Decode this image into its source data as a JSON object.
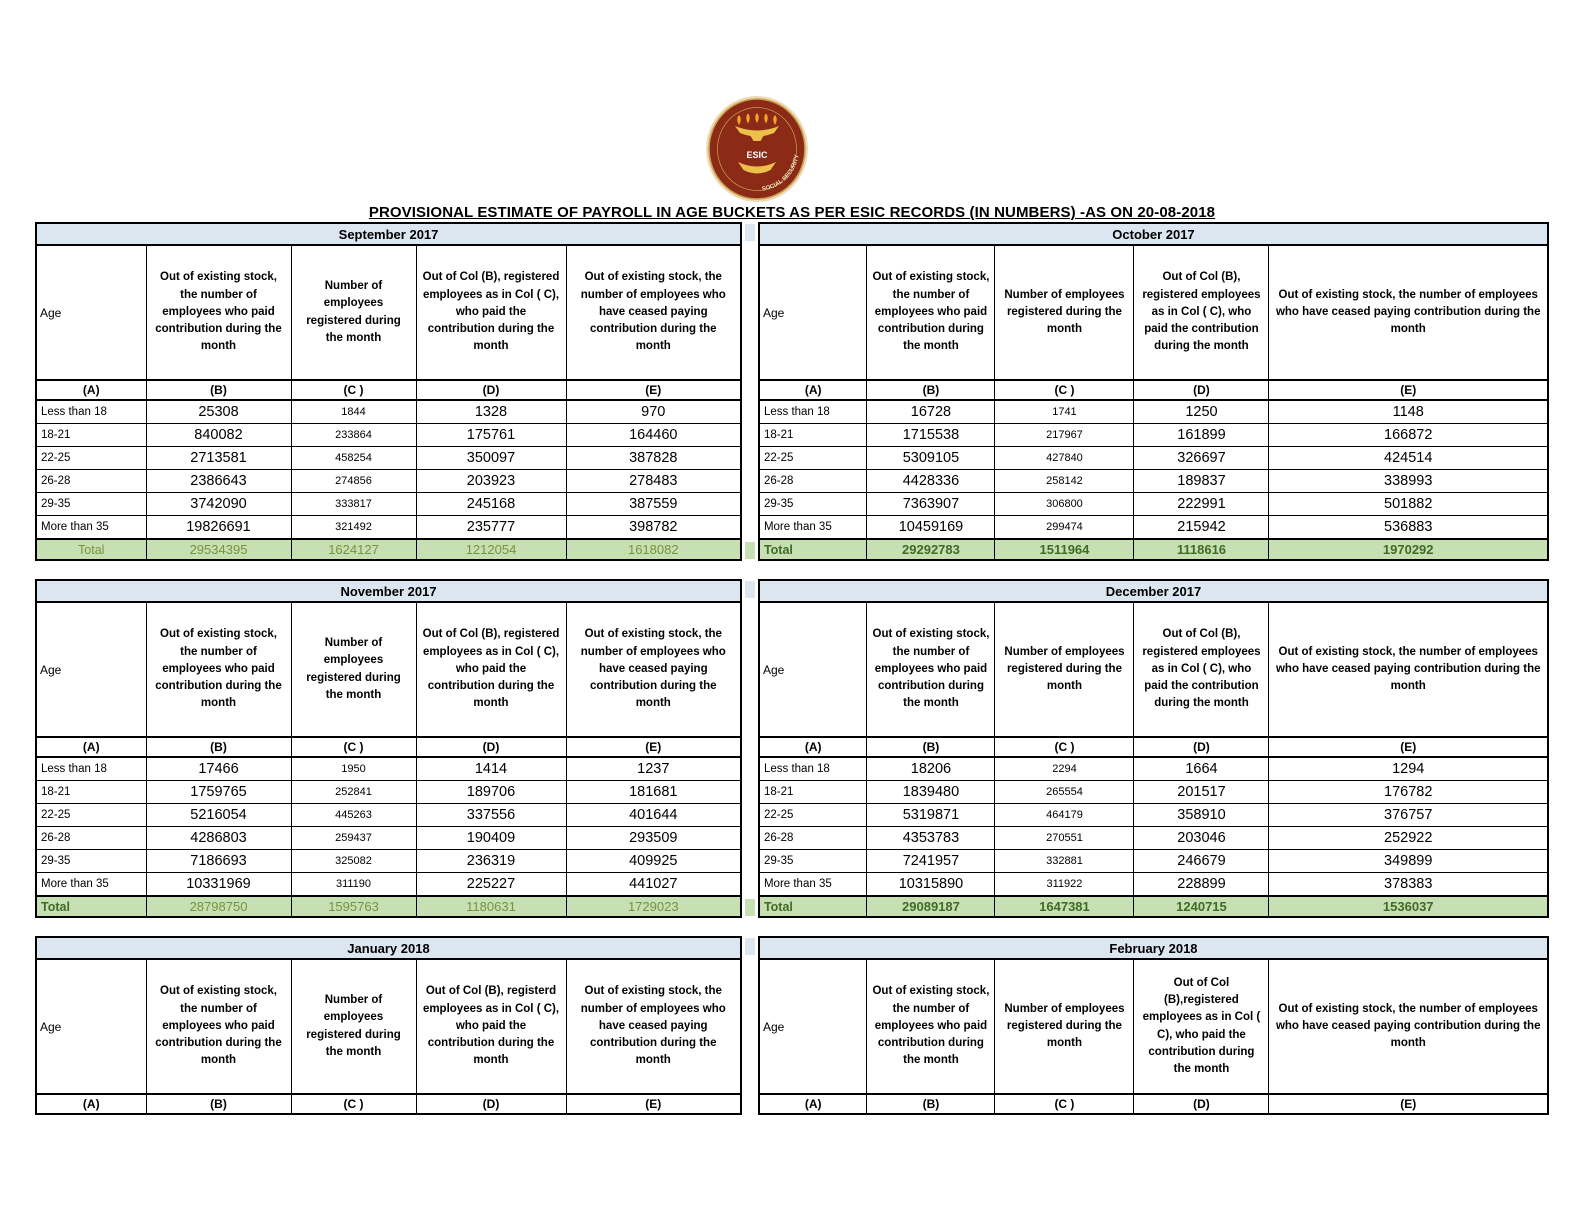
{
  "page_title": "PROVISIONAL ESTIMATE OF PAYROLL IN AGE BUCKETS AS PER ESIC RECORDS (IN NUMBERS) -AS ON 20-08-2018",
  "logo": {
    "acronym": "ESIC",
    "motto": "SOCIAL SECURITY",
    "colors": {
      "maroon": "#8b2a17",
      "gold": "#e2b14c",
      "cream": "#eddcba"
    }
  },
  "colors": {
    "title_bar_blue": "#dce6f1",
    "total_row_green": "#c6e0b4",
    "total_text_plain": "#76933c",
    "total_text_bold": "#3f6b24"
  },
  "letters": [
    "(A)",
    "(B)",
    "(C )",
    "(D)",
    "(E)"
  ],
  "months": [
    {
      "title": "September 2017",
      "headers": {
        "a": "Age",
        "b": "Out of existing stock, the number of employees who paid contribution during the month",
        "c": "Number of employees registered during the month",
        "d": "Out of Col (B), registered employees as in Col ( C), who paid the contribution during the month",
        "e": "Out of existing stock, the number of  employees  who have ceased paying contribution during the month"
      },
      "rows": [
        {
          "age": "Less than 18",
          "b": "25308",
          "c": "1844",
          "d": "1328",
          "e": "970"
        },
        {
          "age": "18-21",
          "b": "840082",
          "c": "233864",
          "d": "175761",
          "e": "164460"
        },
        {
          "age": "22-25",
          "b": "2713581",
          "c": "458254",
          "d": "350097",
          "e": "387828"
        },
        {
          "age": "26-28",
          "b": "2386643",
          "c": "274856",
          "d": "203923",
          "e": "278483"
        },
        {
          "age": "29-35",
          "b": "3742090",
          "c": "333817",
          "d": "245168",
          "e": "387559"
        },
        {
          "age": "More than 35",
          "b": "19826691",
          "c": "321492",
          "d": "235777",
          "e": "398782"
        }
      ],
      "total": {
        "label": "Total",
        "b": "29534395",
        "c": "1624127",
        "d": "1212054",
        "e": "1618082"
      },
      "total_style": {
        "label_align": "center",
        "label_bold": false,
        "values_bold": false
      }
    },
    {
      "title": "October 2017",
      "headers": {
        "a": "Age",
        "b": "Out of existing stock, the number of employees who paid contribution during the month",
        "c": "Number of employees registered during the month",
        "d": "Out of Col (B), registered employees as in Col ( C), who paid the contribution during the month",
        "e": "Out of existing stock, the number of  employees  who have ceased paying contribution during the month"
      },
      "rows": [
        {
          "age": "Less than 18",
          "b": "16728",
          "c": "1741",
          "d": "1250",
          "e": "1148"
        },
        {
          "age": "18-21",
          "b": "1715538",
          "c": "217967",
          "d": "161899",
          "e": "166872"
        },
        {
          "age": "22-25",
          "b": "5309105",
          "c": "427840",
          "d": "326697",
          "e": "424514"
        },
        {
          "age": "26-28",
          "b": "4428336",
          "c": "258142",
          "d": "189837",
          "e": "338993"
        },
        {
          "age": "29-35",
          "b": "7363907",
          "c": "306800",
          "d": "222991",
          "e": "501882"
        },
        {
          "age": "More than 35",
          "b": "10459169",
          "c": "299474",
          "d": "215942",
          "e": "536883"
        }
      ],
      "total": {
        "label": "Total",
        "b": "29292783",
        "c": "1511964",
        "d": "1118616",
        "e": "1970292"
      },
      "total_style": {
        "label_align": "left",
        "label_bold": true,
        "values_bold": true
      }
    },
    {
      "title": "November 2017",
      "headers": {
        "a": "Age",
        "b": "Out of existing stock, the number of employees who paid contribution during the month",
        "c": "Number of employees registered during the month",
        "d": "Out of Col (B), registered employees as in Col ( C), who paid the contribution during the month",
        "e": "Out of existing stock, the number of  employees  who have ceased paying contribution during the month"
      },
      "rows": [
        {
          "age": "Less than 18",
          "b": "17466",
          "c": "1950",
          "d": "1414",
          "e": "1237"
        },
        {
          "age": "18-21",
          "b": "1759765",
          "c": "252841",
          "d": "189706",
          "e": "181681"
        },
        {
          "age": "22-25",
          "b": "5216054",
          "c": "445263",
          "d": "337556",
          "e": "401644"
        },
        {
          "age": "26-28",
          "b": "4286803",
          "c": "259437",
          "d": "190409",
          "e": "293509"
        },
        {
          "age": "29-35",
          "b": "7186693",
          "c": "325082",
          "d": "236319",
          "e": "409925"
        },
        {
          "age": "More than 35",
          "b": "10331969",
          "c": "311190",
          "d": "225227",
          "e": "441027"
        }
      ],
      "total": {
        "label": "Total",
        "b": "28798750",
        "c": "1595763",
        "d": "1180631",
        "e": "1729023"
      },
      "total_style": {
        "label_align": "left",
        "label_bold": true,
        "values_bold": false
      }
    },
    {
      "title": "December 2017",
      "headers": {
        "a": "Age",
        "b": "Out of existing stock, the number of employees who paid contribution during the month",
        "c": "Number of employees registered during the month",
        "d": "Out of Col (B), registered employees as in Col ( C), who paid the contribution during the month",
        "e": "Out of existing stock, the number of  employees  who have ceased paying contribution during the month"
      },
      "rows": [
        {
          "age": "Less than 18",
          "b": "18206",
          "c": "2294",
          "d": "1664",
          "e": "1294"
        },
        {
          "age": "18-21",
          "b": "1839480",
          "c": "265554",
          "d": "201517",
          "e": "176782"
        },
        {
          "age": "22-25",
          "b": "5319871",
          "c": "464179",
          "d": "358910",
          "e": "376757"
        },
        {
          "age": "26-28",
          "b": "4353783",
          "c": "270551",
          "d": "203046",
          "e": "252922"
        },
        {
          "age": "29-35",
          "b": "7241957",
          "c": "332881",
          "d": "246679",
          "e": "349899"
        },
        {
          "age": "More than 35",
          "b": "10315890",
          "c": "311922",
          "d": "228899",
          "e": "378383"
        }
      ],
      "total": {
        "label": "Total",
        "b": "29089187",
        "c": "1647381",
        "d": "1240715",
        "e": "1536037"
      },
      "total_style": {
        "label_align": "left",
        "label_bold": true,
        "values_bold": true
      }
    },
    {
      "title": "January 2018",
      "headers": {
        "a": "Age",
        "b": "Out of existing stock, the number of employees who paid contribution during the month",
        "c": "Number of employees registered during the month",
        "d": "Out of Col (B), registerd employees as in Col ( C), who paid the contribution during the month",
        "e": "Out of existing stock, the number of  employees  who have ceased paying contribution during the month"
      },
      "rows": [],
      "total": null,
      "total_style": null
    },
    {
      "title": "February 2018",
      "headers": {
        "a": "Age",
        "b": "Out of existing stock, the number of employees who paid contribution during the month",
        "c": "Number of employees registered during the month",
        "d": "Out of Col (B),registered employees as in Col ( C), who paid the contribution during the month",
        "e": "Out of existing stock, the number of  employees  who have ceased paying contribution during the month"
      },
      "rows": [],
      "total": null,
      "total_style": null
    }
  ]
}
